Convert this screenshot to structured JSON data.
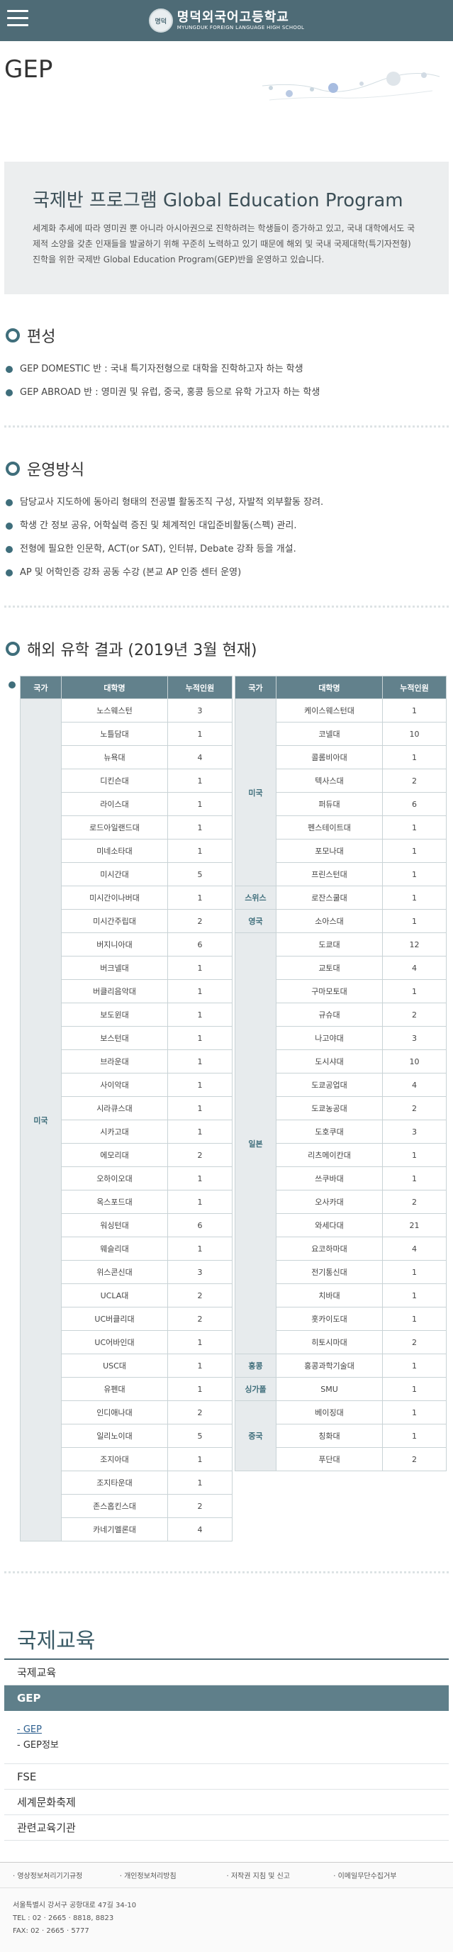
{
  "header": {
    "school_name": "명덕외국어고등학교",
    "school_name_en": "MYUNGDUK FOREIGN LANGUAGE HIGH SCHOOL",
    "emblem_text": "명덕"
  },
  "page": {
    "title": "GEP"
  },
  "intro": {
    "heading": "국제반 프로그램 Global Education Program",
    "body": "세계화 추세에 따라 영미권 뿐 아니라 아시아권으로 진학하려는 학생들이 증가하고 있고, 국내 대학에서도 국제적 소양을 갖춘 인재들을 발굴하기 위해 꾸준히 노력하고 있기 때문에 해외 및 국내 국제대학(특기자전형) 진학을 위한 국제반 Global Education Program(GEP)반을 운영하고 있습니다."
  },
  "composition": {
    "title": "편성",
    "items": [
      "GEP DOMESTIC 반 : 국내 특기자전형으로 대학을 진학하고자 하는 학생",
      "GEP ABROAD 반 : 영미권 및 유럽, 중국, 홍콩 등으로 유학 가고자 하는 학생"
    ]
  },
  "operation": {
    "title": "운영방식",
    "items": [
      "담당교사 지도하에 동아리 형태의 전공별 활동조직 구성, 자발적 외부활동 장려.",
      "학생 간 정보 공유, 어학실력 증진 및 체계적인 대입준비활동(스펙) 관리.",
      "전형에 필요한 인문학, ACT(or SAT), 인터뷰, Debate 강좌 등을 개설.",
      "AP 및 어학인증 강좌 공동 수강 (본교 AP 인증 센터 운영)"
    ]
  },
  "results": {
    "title": "해외 유학 결과 (2019년 3월 현재)",
    "headers": [
      "국가",
      "대학명",
      "누적인원"
    ],
    "left": [
      {
        "country": "미국",
        "rows": [
          [
            "노스웨스턴",
            "3"
          ],
          [
            "노틀담대",
            "1"
          ],
          [
            "뉴욕대",
            "4"
          ],
          [
            "디킨슨대",
            "1"
          ],
          [
            "라이스대",
            "1"
          ],
          [
            "로드아일랜드대",
            "1"
          ],
          [
            "미네소타대",
            "1"
          ],
          [
            "미시간대",
            "5"
          ],
          [
            "미시간이나버대",
            "1"
          ],
          [
            "미시간주립대",
            "2"
          ],
          [
            "버지니아대",
            "6"
          ],
          [
            "버크넬대",
            "1"
          ],
          [
            "버클리음악대",
            "1"
          ],
          [
            "보도윈대",
            "1"
          ],
          [
            "보스턴대",
            "1"
          ],
          [
            "브라운대",
            "1"
          ],
          [
            "사이악대",
            "1"
          ],
          [
            "시라큐스대",
            "1"
          ],
          [
            "시카고대",
            "1"
          ],
          [
            "에모리대",
            "2"
          ],
          [
            "오하이오대",
            "1"
          ],
          [
            "옥스포드대",
            "1"
          ],
          [
            "워싱턴대",
            "6"
          ],
          [
            "웨슬리대",
            "1"
          ],
          [
            "위스콘신대",
            "3"
          ],
          [
            "UCLA대",
            "2"
          ],
          [
            "UC버클리대",
            "2"
          ],
          [
            "UC어바인대",
            "1"
          ],
          [
            "USC대",
            "1"
          ],
          [
            "유펜대",
            "1"
          ],
          [
            "인디애나대",
            "2"
          ],
          [
            "일리노이대",
            "5"
          ],
          [
            "조지아대",
            "1"
          ],
          [
            "조지타운대",
            "1"
          ],
          [
            "존스홉킨스대",
            "2"
          ],
          [
            "카네기멜론대",
            "4"
          ]
        ]
      }
    ],
    "right": [
      {
        "country": "미국",
        "rows": [
          [
            "케이스웨스턴대",
            "1"
          ],
          [
            "코넬대",
            "10"
          ],
          [
            "콜롬비아대",
            "1"
          ],
          [
            "텍사스대",
            "2"
          ],
          [
            "퍼듀대",
            "6"
          ],
          [
            "펜스테이트대",
            "1"
          ],
          [
            "포모나대",
            "1"
          ],
          [
            "프린스턴대",
            "1"
          ]
        ]
      },
      {
        "country": "스위스",
        "rows": [
          [
            "로잔스쿨대",
            "1"
          ]
        ]
      },
      {
        "country": "영국",
        "rows": [
          [
            "소아스대",
            "1"
          ]
        ]
      },
      {
        "country": "일본",
        "rows": [
          [
            "도쿄대",
            "12"
          ],
          [
            "교토대",
            "4"
          ],
          [
            "구마모토대",
            "1"
          ],
          [
            "규슈대",
            "2"
          ],
          [
            "나고야대",
            "3"
          ],
          [
            "도시샤대",
            "10"
          ],
          [
            "도쿄공업대",
            "4"
          ],
          [
            "도쿄농공대",
            "2"
          ],
          [
            "도호쿠대",
            "3"
          ],
          [
            "리츠메이칸대",
            "1"
          ],
          [
            "쓰쿠바대",
            "1"
          ],
          [
            "오사카대",
            "2"
          ],
          [
            "와세다대",
            "21"
          ],
          [
            "요코하마대",
            "4"
          ],
          [
            "전기통신대",
            "1"
          ],
          [
            "치바대",
            "1"
          ],
          [
            "홋카이도대",
            "1"
          ],
          [
            "히토시마대",
            "2"
          ]
        ]
      },
      {
        "country": "홍콩",
        "rows": [
          [
            "홍콩과학기술대",
            "1"
          ]
        ]
      },
      {
        "country": "싱가폴",
        "rows": [
          [
            "SMU",
            "1"
          ]
        ]
      },
      {
        "country": "중국",
        "rows": [
          [
            "베이징대",
            "1"
          ],
          [
            "칭화대",
            "1"
          ],
          [
            "푸단대",
            "2"
          ]
        ]
      }
    ]
  },
  "side_menu": {
    "title": "국제교육",
    "items": [
      "국제교육",
      "GEP",
      "FSE",
      "세계문화축제",
      "관련교육기관"
    ],
    "sub": [
      "GEP",
      "GEP정보"
    ]
  },
  "footer": {
    "links": [
      "영상정보처리기기규정",
      "개인정보처리방침",
      "저작권 지침 및 신고",
      "이메일무단수집거부"
    ],
    "address": "서울특별시 강서구 공항대로 47길 34-10",
    "tel": "TEL : 02 · 2665 · 8818, 8823",
    "fax": "FAX: 02 · 2665 · 5777"
  }
}
